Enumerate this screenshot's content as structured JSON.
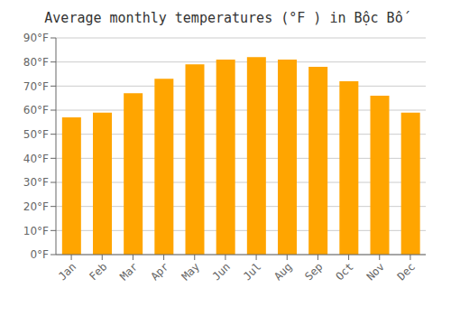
{
  "chart_data": {
    "type": "bar",
    "title": "Average monthly temperatures (°F ) in Bộc Bố",
    "categories": [
      "Jan",
      "Feb",
      "Mar",
      "Apr",
      "May",
      "Jun",
      "Jul",
      "Aug",
      "Sep",
      "Oct",
      "Nov",
      "Dec"
    ],
    "values": [
      57,
      59,
      67,
      73,
      79,
      81,
      82,
      81,
      78,
      72,
      66,
      59
    ],
    "color": "#FFA500",
    "ylim": [
      0,
      90
    ],
    "yticks": [
      {
        "value": 0,
        "label": "0°F"
      },
      {
        "value": 10,
        "label": "10°F"
      },
      {
        "value": 20,
        "label": "20°F"
      },
      {
        "value": 30,
        "label": "30°F"
      },
      {
        "value": 40,
        "label": "40°F"
      },
      {
        "value": 50,
        "label": "50°F"
      },
      {
        "value": 60,
        "label": "60°F"
      },
      {
        "value": 70,
        "label": "70°F"
      },
      {
        "value": 80,
        "label": "80°F"
      },
      {
        "value": 90,
        "label": "90°F"
      }
    ],
    "grid": true
  }
}
